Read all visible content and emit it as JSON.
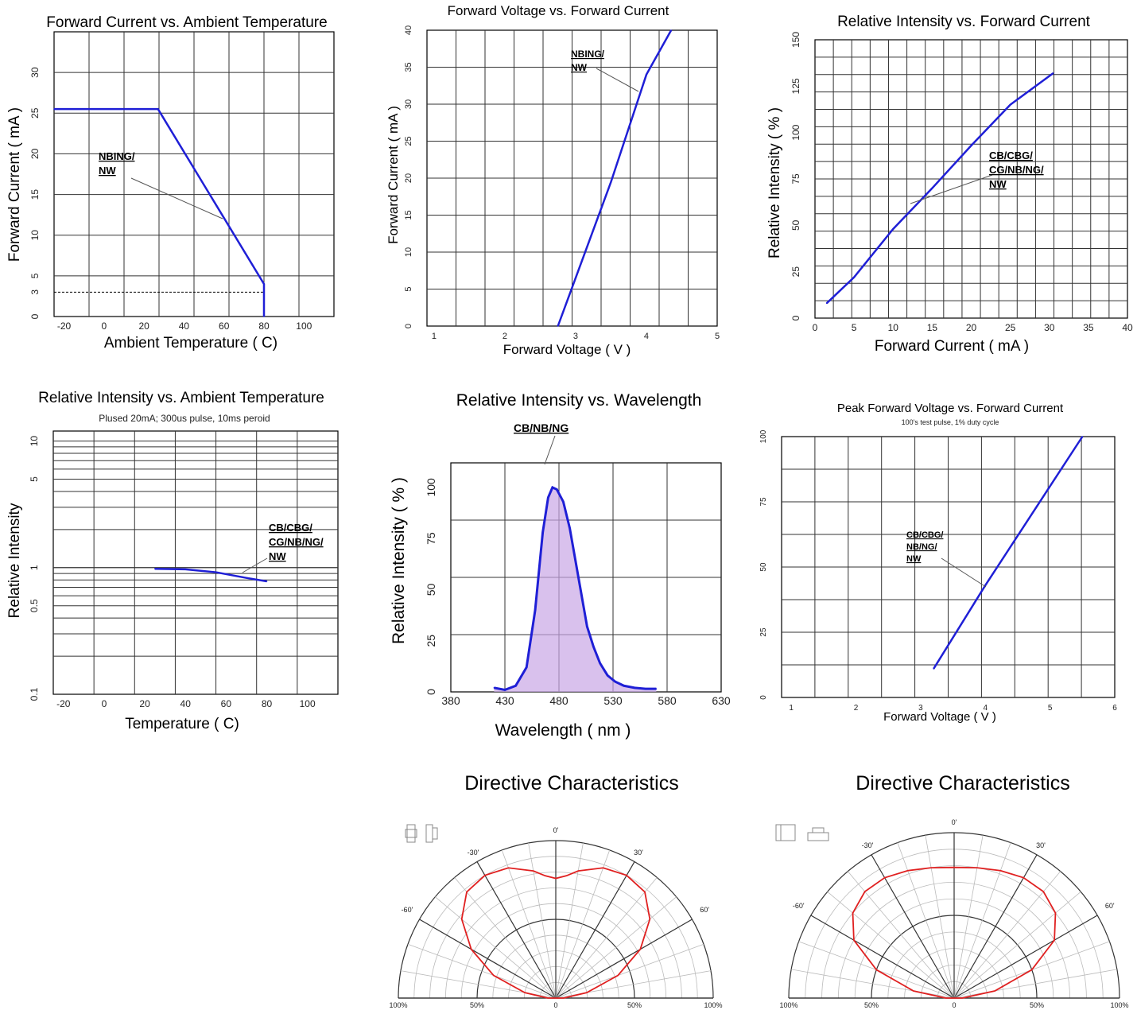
{
  "colors": {
    "curve": "#1f1fd6",
    "polar_curve": "#e02020",
    "grid": "#000000",
    "spectrum_fill": "#c9a6e6"
  },
  "chart_data": [
    {
      "id": "c1",
      "type": "line",
      "title": "Forward Current vs. Ambient Temperature",
      "xlabel": "Ambient Temperature ( C)",
      "ylabel": "Forward Current ( mA )",
      "xlim": [
        -25,
        115
      ],
      "ylim": [
        0,
        35
      ],
      "xticks": [
        "-20",
        "0",
        "20",
        "40",
        "60",
        "80",
        "100"
      ],
      "yticks": [
        "0",
        "3",
        "5",
        "10",
        "15",
        "20",
        "25",
        "30"
      ],
      "ytick_values": [
        0,
        3,
        5,
        10,
        15,
        20,
        25,
        30
      ],
      "series": [
        {
          "x": [
            -25,
            27,
            80,
            80
          ],
          "y": [
            25.5,
            25.5,
            4,
            0
          ]
        }
      ],
      "annotation": [
        "NBING/",
        "NW"
      ]
    },
    {
      "id": "c2",
      "type": "line",
      "title": "Forward Voltage vs. Forward Current",
      "xlabel": "Forward Voltage ( V )",
      "ylabel": "Forward Current ( mA )",
      "xlim": [
        0.9,
        5
      ],
      "ylim": [
        0,
        40
      ],
      "xticks": [
        "1",
        "2",
        "3",
        "4",
        "5"
      ],
      "yticks": [
        "0",
        "5",
        "10",
        "15",
        "20",
        "25",
        "30",
        "35",
        "40"
      ],
      "series": [
        {
          "x": [
            2.75,
            3.5,
            4.0,
            4.35
          ],
          "y": [
            0,
            19.5,
            34,
            40
          ]
        }
      ],
      "annotation": [
        "NBING/",
        "NW"
      ]
    },
    {
      "id": "c3",
      "type": "line",
      "title": "Relative Intensity vs. Forward Current",
      "xlabel": "Forward Current ( mA )",
      "ylabel": "Relative Intensity ( % )",
      "xlim": [
        0,
        40
      ],
      "ylim": [
        0,
        150
      ],
      "xticks": [
        "0",
        "5",
        "10",
        "15",
        "20",
        "25",
        "30",
        "35",
        "40"
      ],
      "yticks": [
        "0",
        "25",
        "50",
        "75",
        "100",
        "125",
        "150"
      ],
      "series": [
        {
          "x": [
            1.5,
            5,
            10,
            15,
            20,
            25,
            30.5
          ],
          "y": [
            8,
            22,
            48,
            70,
            93,
            115,
            132
          ]
        }
      ],
      "annotation": [
        "CB/CBG/",
        "CG/NB/NG/",
        "NW"
      ]
    },
    {
      "id": "c4",
      "type": "line",
      "title": "Relative Intensity vs. Ambient Temperature",
      "subtitle": "Plused 20mA; 300us pulse, 10ms peroid",
      "xlabel": "Temperature ( C)",
      "ylabel": "Relative Intensity",
      "xlim": [
        -25,
        115
      ],
      "ylim": [
        0.1,
        12
      ],
      "yscale": "log",
      "xticks": [
        "-20",
        "0",
        "20",
        "40",
        "60",
        "80",
        "100"
      ],
      "yticks": [
        "0.1",
        "0.5",
        "1",
        "5",
        "10"
      ],
      "ytick_values": [
        0.1,
        0.5,
        1,
        5,
        10
      ],
      "series": [
        {
          "x": [
            25,
            40,
            55,
            70,
            80
          ],
          "y": [
            0.98,
            0.97,
            0.92,
            0.83,
            0.78
          ]
        }
      ],
      "annotation": [
        "CB/CBG/",
        "CG/NB/NG/",
        "NW"
      ]
    },
    {
      "id": "c5",
      "type": "area",
      "title": "Relative Intensity vs. Wavelength",
      "xlabel": "Wavelength ( nm )",
      "ylabel": "Relative Intensity ( % )",
      "xlim": [
        380,
        630
      ],
      "ylim": [
        0,
        112
      ],
      "xticks": [
        "380",
        "430",
        "480",
        "530",
        "580",
        "630"
      ],
      "yticks": [
        "0",
        "25",
        "50",
        "75",
        "100"
      ],
      "series": [
        {
          "x": [
            420,
            430,
            440,
            450,
            458,
            465,
            470,
            474,
            478,
            484,
            490,
            495,
            500,
            506,
            512,
            518,
            525,
            532,
            540,
            550,
            560,
            570
          ],
          "y": [
            2,
            1,
            3,
            12,
            40,
            78,
            95,
            100,
            99,
            93,
            80,
            65,
            50,
            32,
            22,
            14,
            8,
            5,
            3,
            2,
            1.5,
            1.5
          ]
        }
      ],
      "annotation": [
        "CB/NB/NG"
      ]
    },
    {
      "id": "c6",
      "type": "line",
      "title": "Peak Forward Voltage vs. Forward Current",
      "subtitle": "100's test pulse, 1% duty cycle",
      "xlabel": "Forward Voltage ( V )",
      "ylabel": "",
      "xlim": [
        0.85,
        6
      ],
      "ylim": [
        0,
        100
      ],
      "xticks": [
        "1",
        "2",
        "3",
        "4",
        "5",
        "6"
      ],
      "yticks": [
        "0",
        "25",
        "50",
        "75",
        "100"
      ],
      "series": [
        {
          "x": [
            3.2,
            4.0,
            5.5
          ],
          "y": [
            11,
            43,
            100
          ]
        }
      ],
      "annotation": [
        "CB/CBG/",
        "NB/NG/",
        "NW"
      ]
    },
    {
      "id": "p1",
      "type": "polar",
      "title": "Directive Characteristics",
      "angle_labels": [
        "0'",
        "-30'",
        "30'",
        "-60'",
        "60'"
      ],
      "radial_labels": [
        "100%",
        "50%",
        "0",
        "50%",
        "100%"
      ],
      "angles": [
        -90,
        -80,
        -70,
        -60,
        -50,
        -40,
        -30,
        -20,
        -10,
        -5,
        0,
        5,
        10,
        20,
        30,
        40,
        50,
        60,
        70,
        80,
        90
      ],
      "values": [
        0.05,
        0.2,
        0.42,
        0.62,
        0.78,
        0.88,
        0.9,
        0.88,
        0.82,
        0.78,
        0.76,
        0.78,
        0.82,
        0.88,
        0.9,
        0.88,
        0.78,
        0.62,
        0.42,
        0.2,
        0.05
      ]
    },
    {
      "id": "p2",
      "type": "polar",
      "title": "Directive Characteristics",
      "angle_labels": [
        "0'",
        "-30'",
        "30'",
        "-60'",
        "60'"
      ],
      "radial_labels": [
        "100%",
        "50%",
        "0",
        "50%",
        "100%"
      ],
      "angles": [
        -90,
        -80,
        -70,
        -60,
        -50,
        -40,
        -30,
        -20,
        -10,
        0,
        10,
        20,
        30,
        40,
        50,
        60,
        70,
        80,
        90
      ],
      "values": [
        0.05,
        0.25,
        0.5,
        0.7,
        0.8,
        0.84,
        0.84,
        0.82,
        0.8,
        0.79,
        0.8,
        0.82,
        0.84,
        0.84,
        0.8,
        0.7,
        0.5,
        0.25,
        0.05
      ]
    }
  ]
}
